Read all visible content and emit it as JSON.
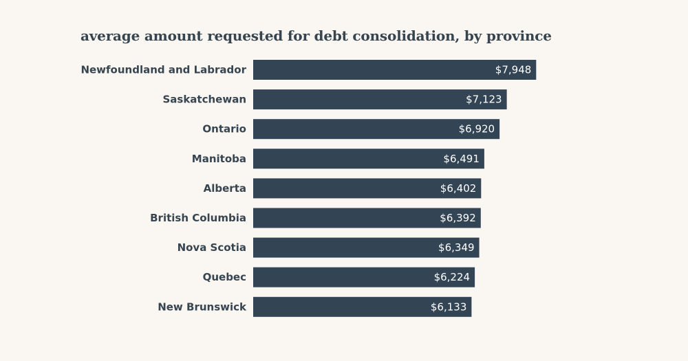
{
  "chart_data": {
    "type": "bar",
    "orientation": "horizontal",
    "title": "average amount requested for debt consolidation, by province",
    "xlabel": "",
    "ylabel": "",
    "grid": false,
    "bar_color": "#334455",
    "background_color": "#faf6f2",
    "categories": [
      "Newfoundland and Labrador",
      "Saskatchewan",
      "Ontario",
      "Manitoba",
      "Alberta",
      "British Columbia",
      "Nova Scotia",
      "Quebec",
      "New Brunswick"
    ],
    "values": [
      7948,
      7123,
      6920,
      6491,
      6402,
      6392,
      6349,
      6224,
      6133
    ],
    "value_labels": [
      "$7,948",
      "$7,123",
      "$6,920",
      "$6,491",
      "$6,402",
      "$6,392",
      "$6,349",
      "$6,224",
      "$6,133"
    ]
  }
}
